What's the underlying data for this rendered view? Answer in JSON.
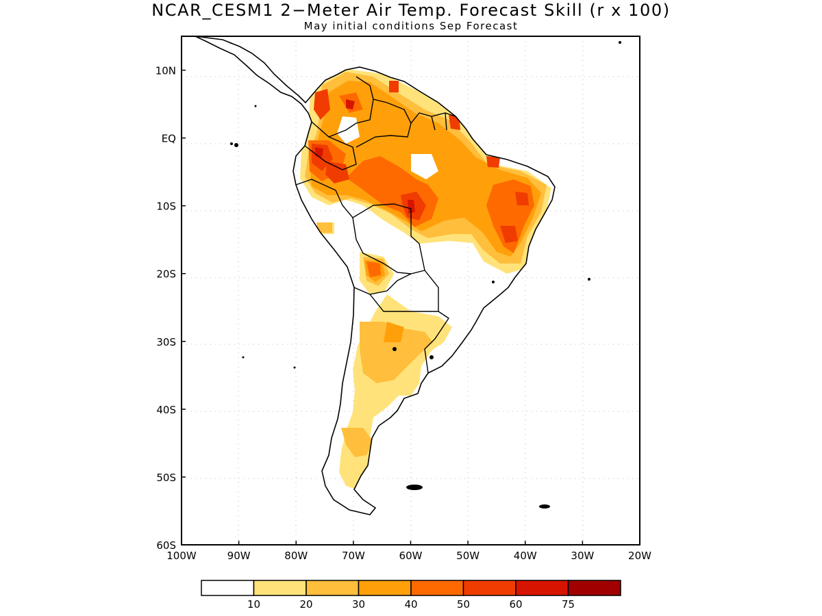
{
  "title": "NCAR_CESM1 2−Meter Air Temp. Forecast Skill (r x 100)",
  "subtitle": "May initial conditions  Sep Forecast",
  "map": {
    "lon_range": [
      -100,
      -20
    ],
    "lat_range": [
      -60,
      15
    ],
    "lon_ticks": [
      {
        "value": -100,
        "label": "100W"
      },
      {
        "value": -90,
        "label": "90W"
      },
      {
        "value": -80,
        "label": "80W"
      },
      {
        "value": -70,
        "label": "70W"
      },
      {
        "value": -60,
        "label": "60W"
      },
      {
        "value": -50,
        "label": "50W"
      },
      {
        "value": -40,
        "label": "40W"
      },
      {
        "value": -30,
        "label": "30W"
      },
      {
        "value": -20,
        "label": "20W"
      }
    ],
    "lat_ticks": [
      {
        "value": 10,
        "label": "10N"
      },
      {
        "value": 0,
        "label": "EQ"
      },
      {
        "value": -10,
        "label": "10S"
      },
      {
        "value": -20,
        "label": "20S"
      },
      {
        "value": -30,
        "label": "30S"
      },
      {
        "value": -40,
        "label": "40S"
      },
      {
        "value": -50,
        "label": "50S"
      },
      {
        "value": -60,
        "label": "60S"
      }
    ],
    "grid": "dotted"
  },
  "colorbar": {
    "levels": [
      "10",
      "20",
      "30",
      "40",
      "50",
      "60",
      "75"
    ],
    "colors": [
      "#ffffff",
      "#ffe37a",
      "#ffbe3c",
      "#ffa00a",
      "#ff6a00",
      "#f03c00",
      "#d71400",
      "#a00000"
    ]
  }
}
